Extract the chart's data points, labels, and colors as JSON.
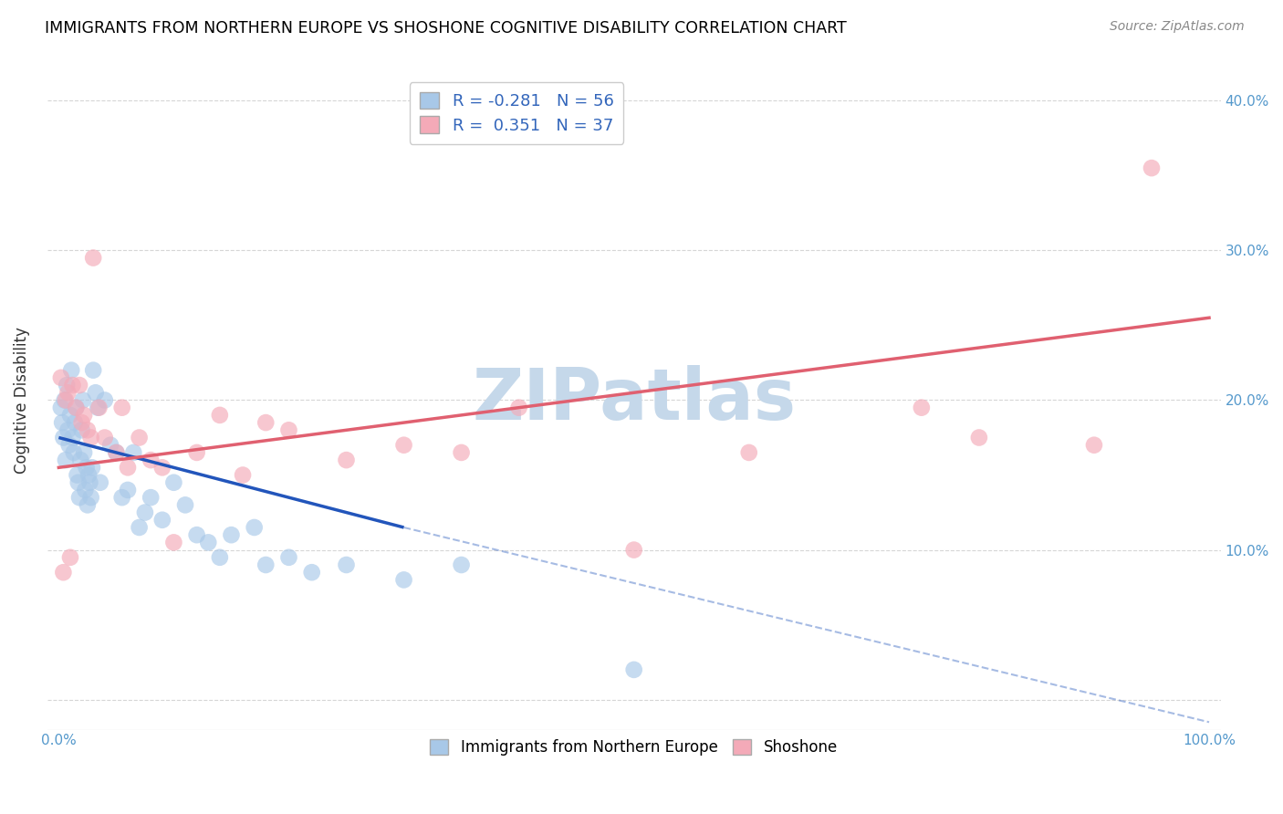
{
  "title": "IMMIGRANTS FROM NORTHERN EUROPE VS SHOSHONE COGNITIVE DISABILITY CORRELATION CHART",
  "source": "Source: ZipAtlas.com",
  "ylabel": "Cognitive Disability",
  "xlim": [
    -1,
    101
  ],
  "ylim": [
    -2,
    42
  ],
  "xticks": [
    0,
    100
  ],
  "xticklabels": [
    "0.0%",
    "100.0%"
  ],
  "yticks": [
    0,
    10,
    20,
    30,
    40
  ],
  "right_yticklabels": [
    "",
    "10.0%",
    "20.0%",
    "30.0%",
    "40.0%"
  ],
  "blue_R": -0.281,
  "blue_N": 56,
  "pink_R": 0.351,
  "pink_N": 37,
  "blue_color": "#a8c8e8",
  "pink_color": "#f4aab8",
  "blue_line_color": "#2255bb",
  "pink_line_color": "#e06070",
  "watermark": "ZIPatlas",
  "watermark_color": "#c5d8ea",
  "blue_scatter_x": [
    0.2,
    0.3,
    0.4,
    0.5,
    0.6,
    0.7,
    0.8,
    0.9,
    1.0,
    1.1,
    1.2,
    1.3,
    1.4,
    1.5,
    1.6,
    1.7,
    1.8,
    1.9,
    2.0,
    2.1,
    2.2,
    2.3,
    2.4,
    2.5,
    2.6,
    2.7,
    2.8,
    2.9,
    3.0,
    3.2,
    3.4,
    3.6,
    4.0,
    4.5,
    5.0,
    5.5,
    6.0,
    6.5,
    7.0,
    7.5,
    8.0,
    9.0,
    10.0,
    11.0,
    12.0,
    13.0,
    14.0,
    15.0,
    17.0,
    18.0,
    20.0,
    22.0,
    25.0,
    30.0,
    35.0,
    50.0
  ],
  "blue_scatter_y": [
    19.5,
    18.5,
    17.5,
    20.0,
    16.0,
    21.0,
    18.0,
    17.0,
    19.0,
    22.0,
    17.5,
    16.5,
    18.5,
    19.5,
    15.0,
    14.5,
    13.5,
    16.0,
    18.0,
    20.0,
    16.5,
    14.0,
    15.5,
    13.0,
    15.0,
    14.5,
    13.5,
    15.5,
    22.0,
    20.5,
    19.5,
    14.5,
    20.0,
    17.0,
    16.5,
    13.5,
    14.0,
    16.5,
    11.5,
    12.5,
    13.5,
    12.0,
    14.5,
    13.0,
    11.0,
    10.5,
    9.5,
    11.0,
    11.5,
    9.0,
    9.5,
    8.5,
    9.0,
    8.0,
    9.0,
    2.0
  ],
  "pink_scatter_x": [
    0.2,
    0.4,
    0.6,
    0.8,
    1.0,
    1.2,
    1.5,
    1.8,
    2.0,
    2.2,
    2.5,
    2.8,
    3.0,
    3.5,
    4.0,
    5.0,
    5.5,
    6.0,
    7.0,
    8.0,
    9.0,
    10.0,
    12.0,
    14.0,
    16.0,
    18.0,
    20.0,
    25.0,
    30.0,
    35.0,
    40.0,
    50.0,
    60.0,
    75.0,
    80.0,
    90.0,
    95.0
  ],
  "pink_scatter_y": [
    21.5,
    8.5,
    20.0,
    20.5,
    9.5,
    21.0,
    19.5,
    21.0,
    18.5,
    19.0,
    18.0,
    17.5,
    29.5,
    19.5,
    17.5,
    16.5,
    19.5,
    15.5,
    17.5,
    16.0,
    15.5,
    10.5,
    16.5,
    19.0,
    15.0,
    18.5,
    18.0,
    16.0,
    17.0,
    16.5,
    19.5,
    10.0,
    16.5,
    19.5,
    17.5,
    17.0,
    35.5
  ],
  "blue_line_x_start": 0,
  "blue_line_x_solid_end": 30,
  "blue_line_x_dash_end": 100,
  "blue_line_y_start": 17.5,
  "blue_line_y_at_solid_end": 11.5,
  "blue_line_y_at_dash_end": -1.5,
  "pink_line_x_start": 0,
  "pink_line_x_end": 100,
  "pink_line_y_start": 15.5,
  "pink_line_y_end": 25.5
}
